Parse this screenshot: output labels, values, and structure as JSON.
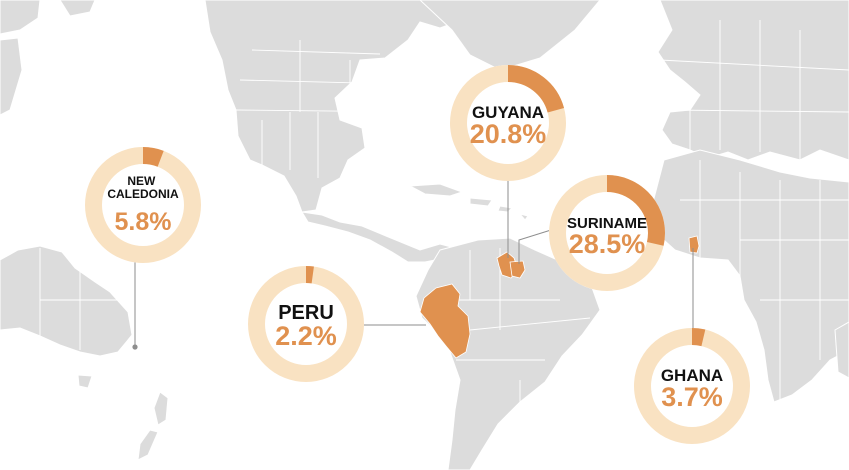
{
  "colors": {
    "land": "#dcdcdc",
    "highlight": "#e0914f",
    "ring_track": "#f9e2c2",
    "ring_fill": "#e0914f",
    "name_text": "#111111",
    "pct_text": "#e0914f",
    "leader": "#8e8e8e"
  },
  "callouts": [
    {
      "id": "new-caledonia",
      "name_lines": [
        "NEW",
        "CALEDONIA"
      ],
      "percent_label": "5.8%",
      "share": 0.058
    },
    {
      "id": "guyana",
      "name_lines": [
        "GUYANA"
      ],
      "percent_label": "20.8%",
      "share": 0.208
    },
    {
      "id": "suriname",
      "name_lines": [
        "SURINAME"
      ],
      "percent_label": "28.5%",
      "share": 0.285
    },
    {
      "id": "peru",
      "name_lines": [
        "PERU"
      ],
      "percent_label": "2.2%",
      "share": 0.022
    },
    {
      "id": "ghana",
      "name_lines": [
        "GHANA"
      ],
      "percent_label": "3.7%",
      "share": 0.037
    }
  ]
}
